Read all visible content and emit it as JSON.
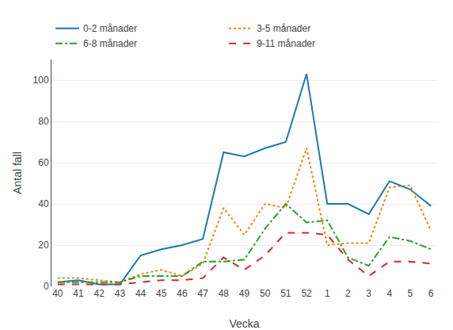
{
  "chart_data": {
    "type": "line",
    "xlabel": "Vecka",
    "ylabel": "Antal fall",
    "categories": [
      "40",
      "41",
      "42",
      "43",
      "44",
      "45",
      "46",
      "47",
      "48",
      "49",
      "50",
      "51",
      "52",
      "1",
      "2",
      "3",
      "4",
      "5",
      "6"
    ],
    "series": [
      {
        "name": "0-2 månader",
        "line_style": "solid",
        "values": [
          2,
          3,
          1,
          1,
          15,
          18,
          20,
          23,
          65,
          63,
          67,
          70,
          103,
          40,
          40,
          35,
          51,
          47,
          39
        ]
      },
      {
        "name": "3-5 månader",
        "line_style": "dotted",
        "values": [
          4,
          4,
          3,
          2,
          6,
          8,
          5,
          11,
          38,
          25,
          40,
          38,
          67,
          20,
          21,
          21,
          48,
          49,
          27
        ]
      },
      {
        "name": "6-8 månader",
        "line_style": "dashdot",
        "values": [
          2,
          2,
          2,
          2,
          5,
          5,
          5,
          12,
          12,
          13,
          28,
          40,
          31,
          32,
          14,
          10,
          24,
          22,
          18
        ]
      },
      {
        "name": "9-11 månader",
        "line_style": "dashed",
        "values": [
          1,
          1,
          1,
          1,
          2,
          3,
          3,
          4,
          14,
          8,
          15,
          26,
          26,
          25,
          13,
          5,
          12,
          12,
          11
        ]
      }
    ],
    "ylim": [
      0,
      110
    ],
    "yticks": [
      0,
      20,
      40,
      60,
      80,
      100
    ],
    "grid": true,
    "legend": "top"
  }
}
